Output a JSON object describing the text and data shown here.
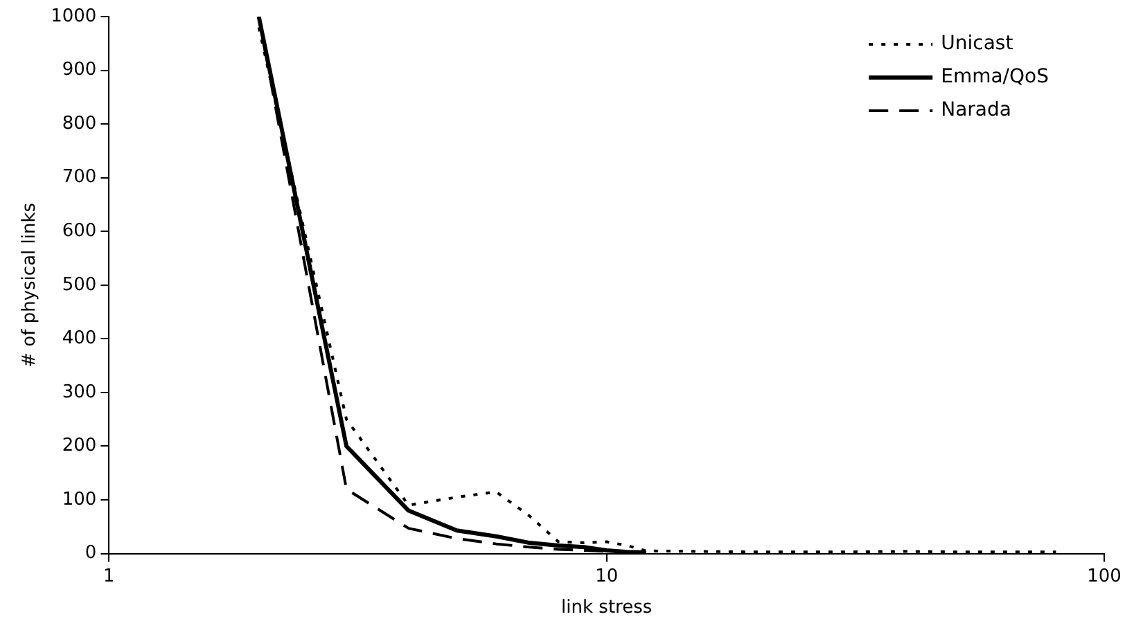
{
  "chart_data": {
    "type": "line",
    "xlabel": "link stress",
    "ylabel": "# of physical links",
    "log": "x",
    "xlim": [
      1,
      100
    ],
    "xticks": [
      1,
      10,
      100
    ],
    "ylim": [
      0,
      1000
    ],
    "yticks": [
      0,
      100,
      200,
      300,
      400,
      500,
      600,
      700,
      800,
      900,
      1000
    ],
    "grid": false,
    "legend": "top right",
    "marker": "none",
    "series": [
      {
        "name": "Unicast",
        "color": "#000000",
        "line_style": "dotted",
        "x": [
          2,
          3,
          4,
          5,
          6,
          7,
          8,
          9,
          10,
          11,
          12,
          15,
          20,
          30,
          40,
          50,
          60,
          70,
          80
        ],
        "values": [
          980,
          250,
          90,
          105,
          115,
          70,
          22,
          20,
          22,
          15,
          5,
          4,
          3,
          3,
          4,
          3,
          3,
          3,
          3
        ]
      },
      {
        "name": "Emma/QoS",
        "color": "#000000",
        "line_style": "solid",
        "x": [
          2,
          3,
          4,
          5,
          6,
          7,
          8,
          9,
          10,
          11,
          12
        ],
        "values": [
          1000,
          200,
          80,
          43,
          32,
          20,
          15,
          12,
          6,
          3,
          2
        ]
      },
      {
        "name": "Narada",
        "color": "#000000",
        "line_style": "dashed",
        "x": [
          2,
          3,
          4,
          5,
          6,
          7,
          8,
          9,
          10,
          11,
          12
        ],
        "values": [
          1000,
          120,
          47,
          28,
          18,
          12,
          8,
          6,
          4,
          3,
          2
        ]
      }
    ]
  }
}
